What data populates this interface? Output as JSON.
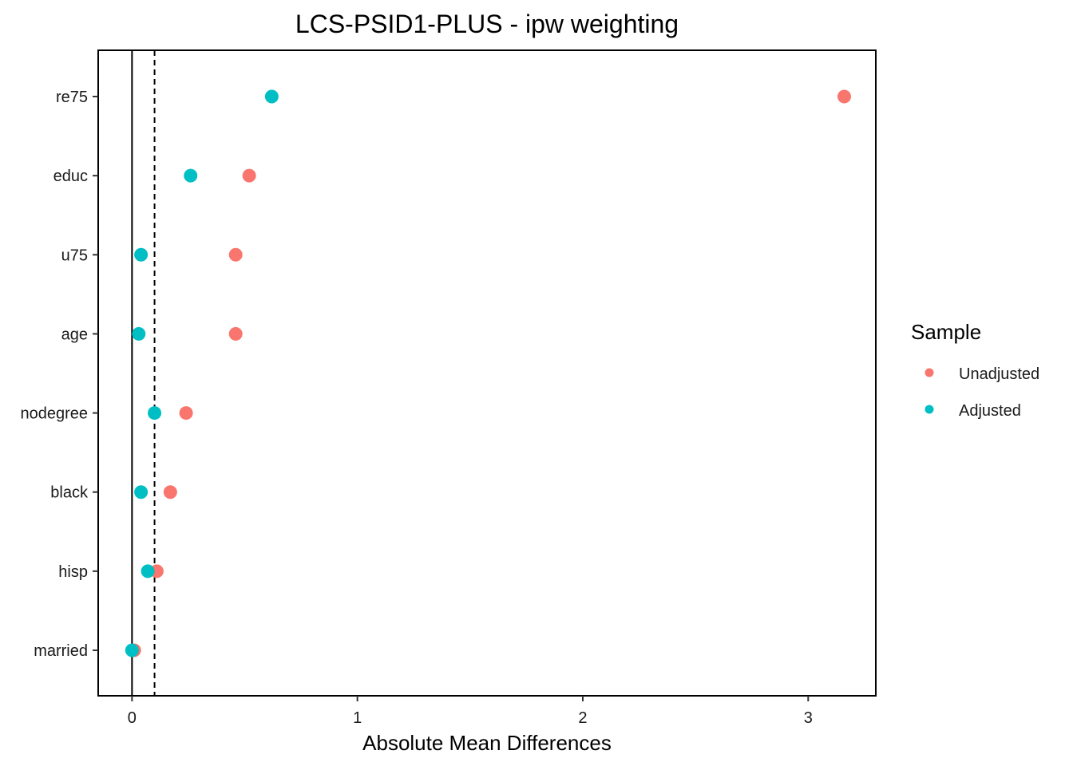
{
  "chart_data": {
    "type": "scatter",
    "title": "LCS-PSID1-PLUS - ipw weighting",
    "xlabel": "Absolute Mean Differences",
    "ylabel": "",
    "xlim": [
      -0.15,
      3.3
    ],
    "x_ticks": [
      0,
      1,
      2,
      3
    ],
    "x_tick_labels": [
      "0",
      "1",
      "2",
      "3"
    ],
    "categories": [
      "re75",
      "educ",
      "u75",
      "age",
      "nodegree",
      "black",
      "hisp",
      "married"
    ],
    "series": [
      {
        "name": "Unadjusted",
        "color": "#F8766D",
        "values": [
          3.16,
          0.52,
          0.46,
          0.46,
          0.24,
          0.17,
          0.11,
          0.01
        ]
      },
      {
        "name": "Adjusted",
        "color": "#00BFC4",
        "values": [
          0.62,
          0.26,
          0.04,
          0.03,
          0.1,
          0.04,
          0.07,
          0.0
        ]
      }
    ],
    "reference_lines": [
      {
        "value": 0,
        "style": "solid"
      },
      {
        "value": 0.1,
        "style": "dashed"
      }
    ],
    "legend": {
      "title": "Sample",
      "position": "right"
    },
    "grid": false
  }
}
